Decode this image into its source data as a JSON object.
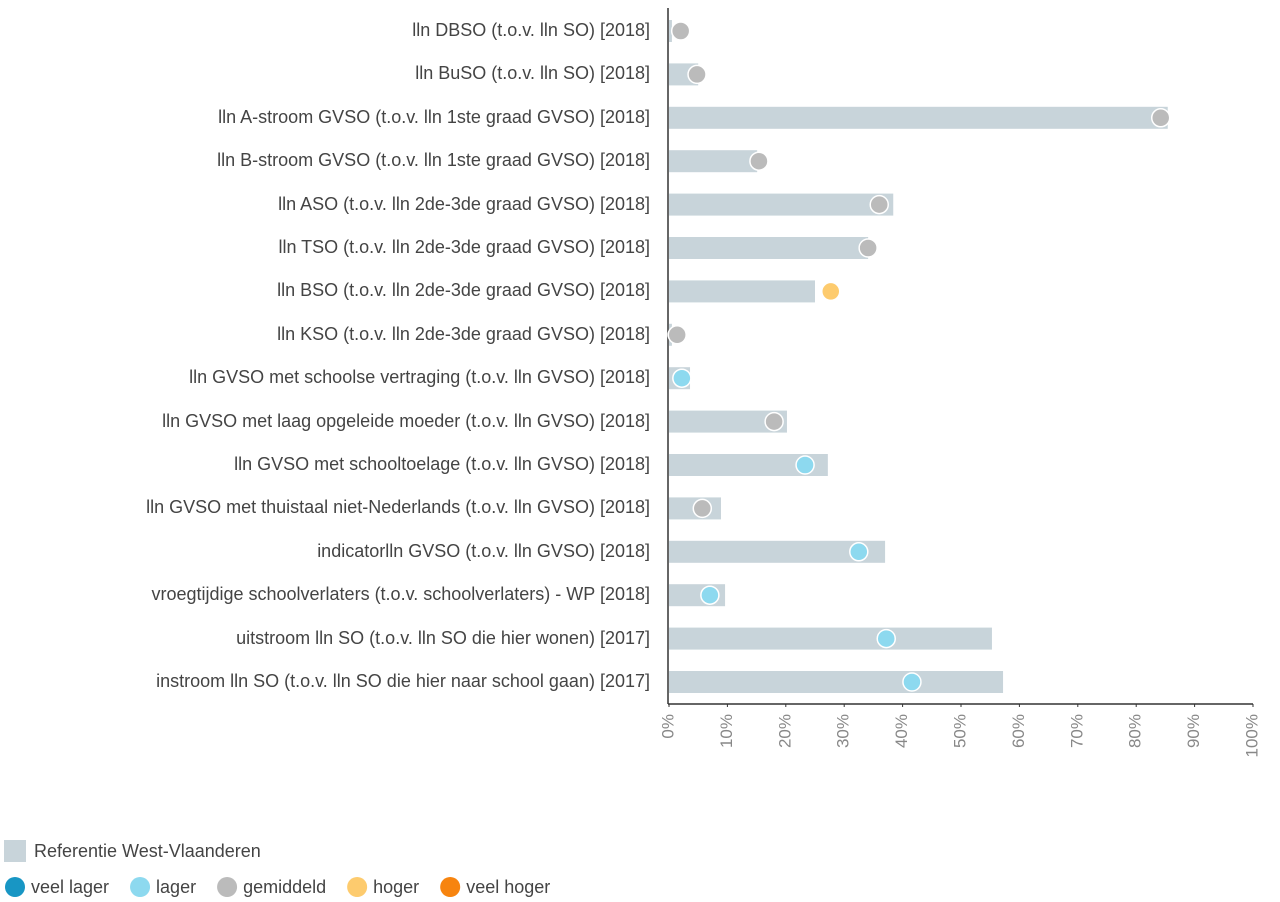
{
  "chart_data": {
    "type": "bar",
    "categories": [
      "lln DBSO (t.o.v. lln SO) [2018]",
      "lln BuSO (t.o.v. lln SO) [2018]",
      "lln A-stroom GVSO (t.o.v. lln 1ste graad GVSO) [2018]",
      "lln B-stroom GVSO (t.o.v. lln 1ste graad GVSO) [2018]",
      "lln ASO (t.o.v. lln 2de-3de graad GVSO) [2018]",
      "lln TSO (t.o.v. lln 2de-3de graad GVSO) [2018]",
      "lln BSO (t.o.v. lln 2de-3de graad GVSO) [2018]",
      "lln KSO (t.o.v. lln 2de-3de graad GVSO) [2018]",
      "lln GVSO met schoolse vertraging (t.o.v. lln GVSO) [2018]",
      "lln GVSO met laag opgeleide moeder (t.o.v. lln GVSO) [2018]",
      "lln GVSO met schooltoelage (t.o.v. lln GVSO) [2018]",
      "lln GVSO met thuistaal niet-Nederlands (t.o.v. lln GVSO) [2018]",
      "indicatorlln GVSO (t.o.v. lln GVSO) [2018]",
      "vroegtijdige schoolverlaters (t.o.v. schoolverlaters) - WP [2018]",
      "uitstroom lln SO (t.o.v. lln SO die hier wonen) [2017]",
      "instroom lln SO (t.o.v. lln SO die hier naar school gaan) [2017]"
    ],
    "series": [
      {
        "name": "Referentie West-Vlaanderen",
        "color": "#c8d4da",
        "values": [
          0.5,
          5,
          85.4,
          15.1,
          38.4,
          34.1,
          25.0,
          0.5,
          3.6,
          20.2,
          27.2,
          8.9,
          37.0,
          9.6,
          55.3,
          57.2
        ]
      }
    ],
    "markers": {
      "values": [
        2.0,
        4.8,
        84.2,
        15.4,
        36.0,
        34.1,
        27.7,
        1.4,
        2.2,
        18.0,
        23.3,
        5.7,
        32.5,
        7.0,
        37.2,
        41.6
      ],
      "colors": [
        "#bbbbbb",
        "#bbbbbb",
        "#bbbbbb",
        "#bbbbbb",
        "#bbbbbb",
        "#bbbbbb",
        "#fdcb6e",
        "#bbbbbb",
        "#8dd9ef",
        "#bbbbbb",
        "#8dd9ef",
        "#bbbbbb",
        "#8dd9ef",
        "#8dd9ef",
        "#8dd9ef",
        "#8dd9ef"
      ]
    },
    "classes": [
      {
        "name": "veel lager",
        "color": "#1896c4"
      },
      {
        "name": "lager",
        "color": "#8dd9ef"
      },
      {
        "name": "gemiddeld",
        "color": "#bbbbbb"
      },
      {
        "name": "hoger",
        "color": "#fdcb6e"
      },
      {
        "name": "veel hoger",
        "color": "#f7840f"
      }
    ],
    "xlim": [
      0,
      100
    ],
    "xticks": [
      {
        "value": 0,
        "label": "0%"
      },
      {
        "value": 10,
        "label": "10%"
      },
      {
        "value": 20,
        "label": "20%"
      },
      {
        "value": 30,
        "label": "30%"
      },
      {
        "value": 40,
        "label": "40%"
      },
      {
        "value": 50,
        "label": "50%"
      },
      {
        "value": 60,
        "label": "60%"
      },
      {
        "value": 70,
        "label": "70%"
      },
      {
        "value": 80,
        "label": "80%"
      },
      {
        "value": 90,
        "label": "90%"
      },
      {
        "value": 100,
        "label": "100%"
      }
    ]
  }
}
